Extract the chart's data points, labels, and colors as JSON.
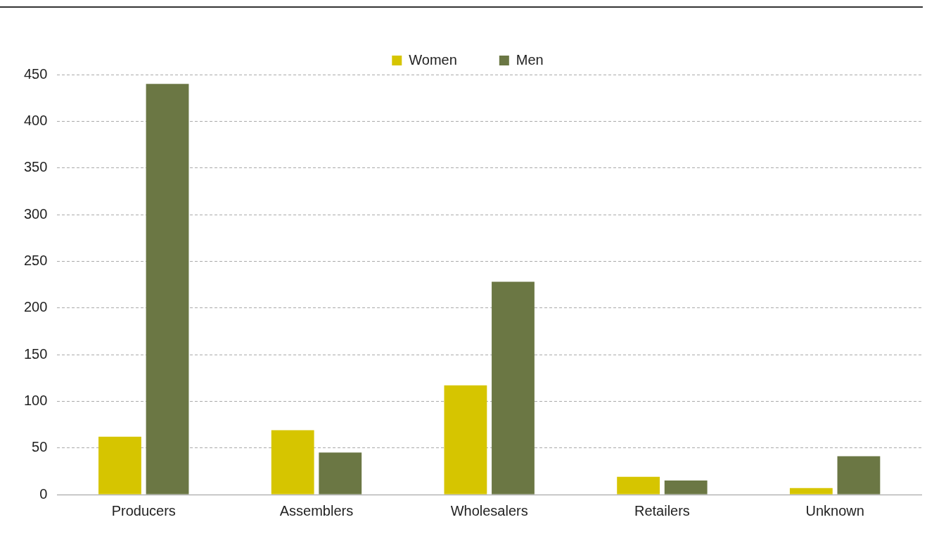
{
  "chart_data": {
    "type": "bar",
    "categories": [
      "Producers",
      "Assemblers",
      "Wholesalers",
      "Retailers",
      "Unknown"
    ],
    "series": [
      {
        "name": "Women",
        "color": "#d6c500",
        "values": [
          62,
          69,
          117,
          19,
          7
        ]
      },
      {
        "name": "Men",
        "color": "#6b7744",
        "values": [
          440,
          45,
          228,
          15,
          41
        ]
      }
    ],
    "ylim": [
      0,
      450
    ],
    "yticks": [
      0,
      50,
      100,
      150,
      200,
      250,
      300,
      350,
      400,
      450
    ],
    "grid": "y",
    "legend": "top"
  }
}
